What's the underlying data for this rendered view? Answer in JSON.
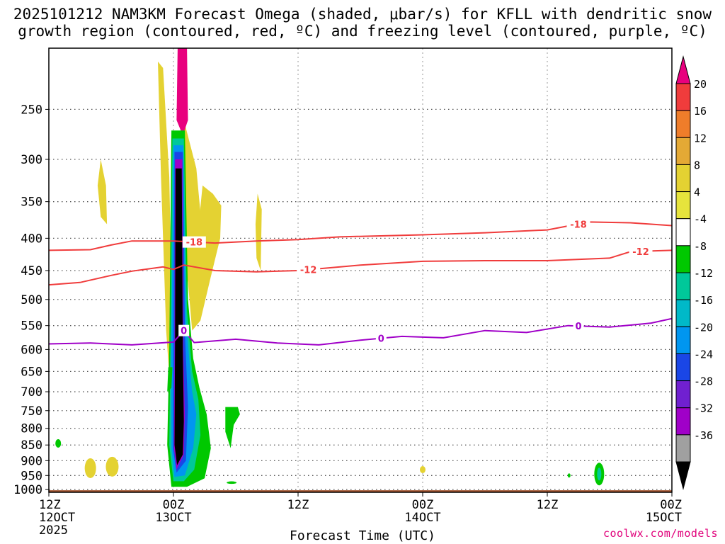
{
  "header": {
    "title_line1": "2025101212 NAM3KM Forecast Omega (shaded, μbar/s) for KFLL with dendritic snow",
    "title_line2": "growth region (contoured, red, ºC) and freezing level (contoured, purple, ºC)"
  },
  "footer": {
    "credit": "coolwx.com/models"
  },
  "chart_data": {
    "type": "heatmap",
    "title": "2025101212 NAM3KM Forecast Omega (shaded, μbar/s) for KFLL with dendritic snow growth region (contoured, red, ºC) and freezing level (contoured, purple, ºC)",
    "xlabel": "Forecast Time (UTC)",
    "ylabel": "",
    "x_ticks": [
      {
        "hour": 0,
        "line1": "12Z",
        "line2": "12OCT",
        "line3": "2025"
      },
      {
        "hour": 12,
        "line1": "00Z",
        "line2": "13OCT",
        "line3": ""
      },
      {
        "hour": 24,
        "line1": "12Z",
        "line2": "",
        "line3": ""
      },
      {
        "hour": 36,
        "line1": "00Z",
        "line2": "14OCT",
        "line3": ""
      },
      {
        "hour": 48,
        "line1": "12Z",
        "line2": "",
        "line3": ""
      },
      {
        "hour": 60,
        "line1": "00Z",
        "line2": "15OCT",
        "line3": ""
      }
    ],
    "xlim": [
      0,
      60
    ],
    "y_pressure_ticks": [
      250,
      300,
      350,
      400,
      450,
      500,
      550,
      600,
      650,
      700,
      750,
      800,
      850,
      900,
      950,
      1000
    ],
    "ylim_hpa": [
      200,
      1010
    ],
    "colorbar": {
      "levels": [
        20,
        16,
        12,
        8,
        4,
        -4,
        -8,
        -12,
        -16,
        -20,
        -24,
        -28,
        -32,
        -36
      ],
      "colors": [
        "#e8007e",
        "#f03c3c",
        "#ef7d2a",
        "#e4a935",
        "#e4d232",
        "#e6e43c",
        "#ffffff",
        "#00c800",
        "#00c89a",
        "#00b9c8",
        "#0096f0",
        "#1a46e6",
        "#7020d0",
        "#a000c8",
        "#a0a0a0",
        "#000000"
      ]
    },
    "contours": [
      {
        "name": "-18",
        "color": "#f03c3c",
        "label_hours": [
          14,
          51
        ],
        "points": [
          [
            0,
            418
          ],
          [
            4,
            417
          ],
          [
            6,
            410
          ],
          [
            8,
            404
          ],
          [
            12,
            404
          ],
          [
            16,
            407
          ],
          [
            20,
            404
          ],
          [
            24,
            402
          ],
          [
            28,
            398
          ],
          [
            36,
            395
          ],
          [
            42,
            392
          ],
          [
            48,
            388
          ],
          [
            52,
            377
          ],
          [
            56,
            378
          ],
          [
            60,
            382
          ]
        ]
      },
      {
        "name": "-12",
        "color": "#f03c3c",
        "label_hours": [
          25,
          57
        ],
        "points": [
          [
            0,
            474
          ],
          [
            3,
            470
          ],
          [
            6,
            458
          ],
          [
            8,
            451
          ],
          [
            11,
            444
          ],
          [
            12,
            448
          ],
          [
            13,
            441
          ],
          [
            16,
            450
          ],
          [
            20,
            452
          ],
          [
            24,
            450
          ],
          [
            30,
            441
          ],
          [
            36,
            435
          ],
          [
            42,
            434
          ],
          [
            48,
            434
          ],
          [
            54,
            430
          ],
          [
            56,
            420
          ],
          [
            60,
            418
          ]
        ]
      },
      {
        "name": "0",
        "color": "#a000c8",
        "label_hours": [
          13,
          32,
          51
        ],
        "points": [
          [
            0,
            588
          ],
          [
            4,
            586
          ],
          [
            8,
            590
          ],
          [
            12,
            584
          ],
          [
            13,
            560
          ],
          [
            14,
            585
          ],
          [
            18,
            578
          ],
          [
            22,
            586
          ],
          [
            26,
            590
          ],
          [
            30,
            580
          ],
          [
            34,
            572
          ],
          [
            38,
            575
          ],
          [
            42,
            560
          ],
          [
            46,
            564
          ],
          [
            50,
            550
          ],
          [
            54,
            553
          ],
          [
            58,
            545
          ],
          [
            60,
            536
          ]
        ]
      }
    ],
    "ground_level_hpa": 1000
  }
}
